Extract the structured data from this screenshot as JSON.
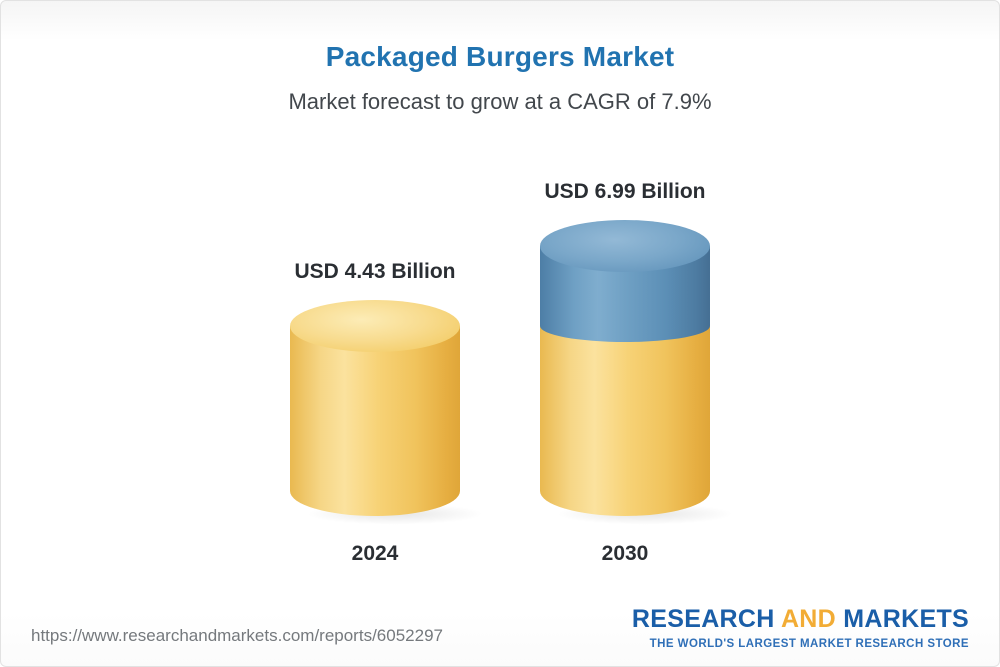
{
  "header": {
    "title": "Packaged Burgers Market",
    "subtitle": "Market forecast to grow at a CAGR of 7.9%"
  },
  "chart_data": {
    "type": "bar",
    "categories": [
      "2024",
      "2030"
    ],
    "values": [
      4.43,
      6.99
    ],
    "value_labels": [
      "USD 4.43 Billion",
      "USD 6.99 Billion"
    ],
    "unit": "USD Billion",
    "title": "Packaged Burgers Market",
    "subtitle": "Market forecast to grow at a CAGR of 7.9%",
    "legend_position": "none",
    "grid": false,
    "axes_visible": false,
    "colors": {
      "base_segment": "#F5CB63",
      "growth_segment": "#5D8FBA",
      "title_accent": "#2173B0"
    }
  },
  "footer": {
    "url": "https://www.researchandmarkets.com/reports/6052297",
    "logo": {
      "part1": "RESEARCH",
      "part2": "AND",
      "part3": "MARKETS",
      "tagline": "THE WORLD'S LARGEST MARKET RESEARCH STORE"
    }
  }
}
